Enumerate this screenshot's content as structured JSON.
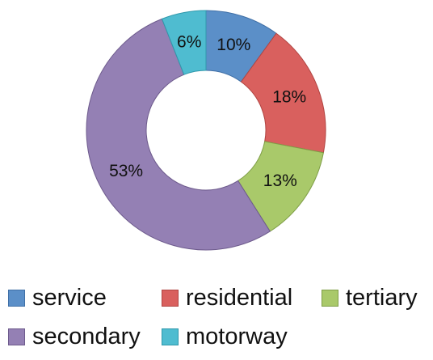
{
  "chart_data": {
    "type": "pie",
    "donut": true,
    "categories": [
      "service",
      "residential",
      "tertiary",
      "secondary",
      "motorway"
    ],
    "values": [
      10,
      18,
      13,
      53,
      6
    ],
    "labels": [
      "10%",
      "18%",
      "13%",
      "53%",
      "6%"
    ],
    "colors": [
      "#5b8fc8",
      "#d9605e",
      "#a9c96a",
      "#9480b4",
      "#4fbcd0"
    ],
    "stroke_colors": [
      "#3f6fa6",
      "#b04441",
      "#7f9e47",
      "#6d5a8c",
      "#2f98ab"
    ],
    "legend_placement": "bottom"
  }
}
